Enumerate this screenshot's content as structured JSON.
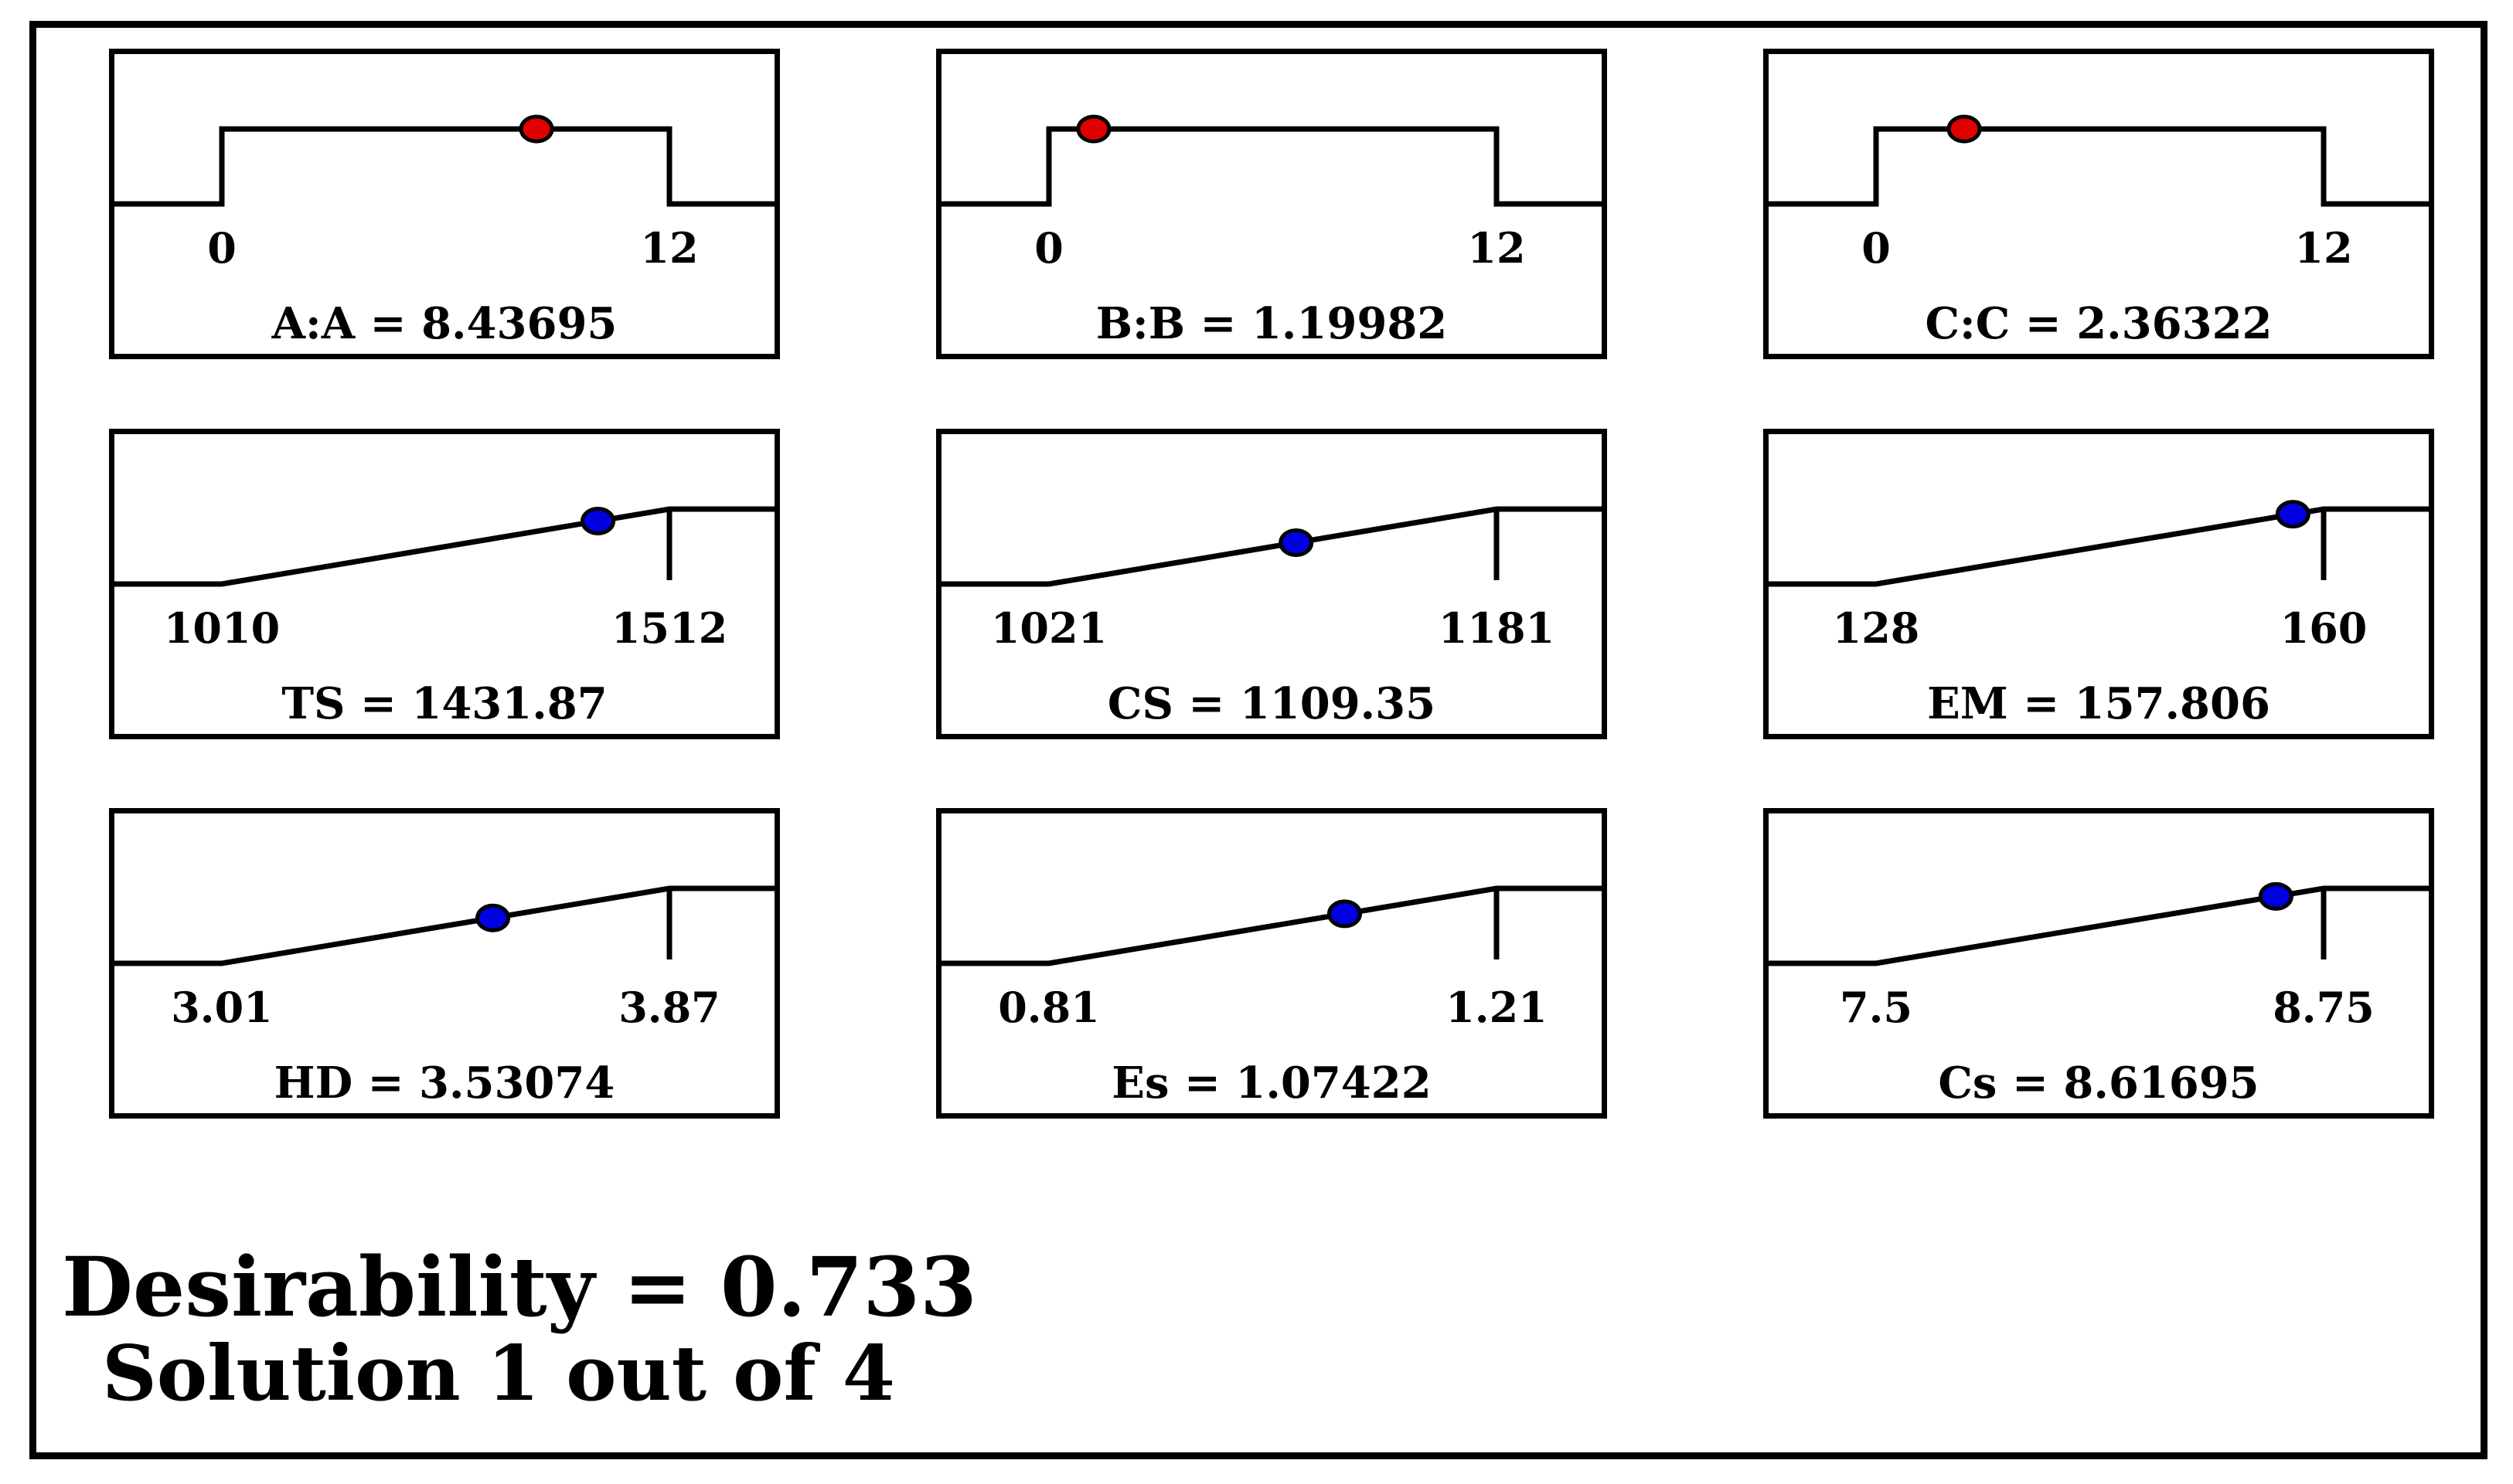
{
  "chart_data": {
    "type": "desirability ramps",
    "panels": [
      {
        "label": "A:A = 8.43695",
        "kind": "factor",
        "low": 0,
        "high": 12,
        "low_label": "0",
        "high_label": "12",
        "value": 8.43695,
        "color": "#e00000"
      },
      {
        "label": "B:B = 1.19982",
        "kind": "factor",
        "low": 0,
        "high": 12,
        "low_label": "0",
        "high_label": "12",
        "value": 1.19982,
        "color": "#e00000"
      },
      {
        "label": "C:C = 2.36322",
        "kind": "factor",
        "low": 0,
        "high": 12,
        "low_label": "0",
        "high_label": "12",
        "value": 2.36322,
        "color": "#e00000"
      },
      {
        "label": "TS = 1431.87",
        "kind": "response",
        "low": 1010,
        "high": 1512,
        "low_label": "1010",
        "high_label": "1512",
        "value": 1431.87,
        "color": "#0000e0"
      },
      {
        "label": "CS = 1109.35",
        "kind": "response",
        "low": 1021,
        "high": 1181,
        "low_label": "1021",
        "high_label": "1181",
        "value": 1109.35,
        "color": "#0000e0"
      },
      {
        "label": "EM = 157.806",
        "kind": "response",
        "low": 128,
        "high": 160,
        "low_label": "128",
        "high_label": "160",
        "value": 157.806,
        "color": "#0000e0"
      },
      {
        "label": "HD = 3.53074",
        "kind": "response",
        "low": 3.01,
        "high": 3.87,
        "low_label": "3.01",
        "high_label": "3.87",
        "value": 3.53074,
        "color": "#0000e0"
      },
      {
        "label": "Es = 1.07422",
        "kind": "response",
        "low": 0.81,
        "high": 1.21,
        "low_label": "0.81",
        "high_label": "1.21",
        "value": 1.07422,
        "color": "#0000e0"
      },
      {
        "label": "Cs = 8.61695",
        "kind": "response",
        "low": 7.5,
        "high": 8.75,
        "low_label": "7.5",
        "high_label": "8.75",
        "value": 8.61695,
        "color": "#0000e0"
      }
    ]
  },
  "summary": {
    "desirability": "Desirability = 0.733",
    "solution": "Solution 1 out of 4"
  }
}
